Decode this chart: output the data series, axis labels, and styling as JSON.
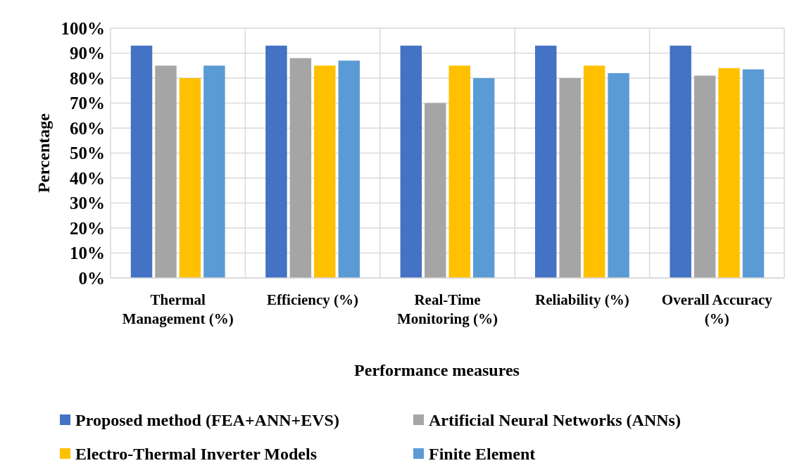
{
  "chart_data": {
    "type": "bar",
    "xlabel": "Performance measures",
    "ylabel": "Percentage",
    "categories": [
      "Thermal Management (%)",
      "Efficiency (%)",
      "Real-Time Monitoring (%)",
      "Reliability (%)",
      "Overall Accuracy (%)"
    ],
    "series": [
      {
        "name": "Proposed method (FEA+ANN+EVS)",
        "color": "#4472c4",
        "values": [
          93,
          93,
          93,
          93,
          93
        ]
      },
      {
        "name": "Artificial Neural Networks (ANNs)",
        "color": "#a5a5a5",
        "values": [
          85,
          88,
          70,
          80,
          81
        ]
      },
      {
        "name": "Electro-Thermal Inverter Models",
        "color": "#ffc000",
        "values": [
          80,
          85,
          85,
          85,
          84
        ]
      },
      {
        "name": "Finite Element",
        "color": "#5b9bd5",
        "values": [
          85,
          87,
          80,
          82,
          83.5
        ]
      }
    ],
    "ylim": [
      0,
      100
    ],
    "yticks": [
      {
        "value": 0,
        "label": "0%"
      },
      {
        "value": 10,
        "label": "10%"
      },
      {
        "value": 20,
        "label": "20%"
      },
      {
        "value": 30,
        "label": "30%"
      },
      {
        "value": 40,
        "label": "40%"
      },
      {
        "value": 50,
        "label": "50%"
      },
      {
        "value": 60,
        "label": "60%"
      },
      {
        "value": 70,
        "label": "70%"
      },
      {
        "value": 80,
        "label": "80%"
      },
      {
        "value": 90,
        "label": "90%"
      },
      {
        "value": 100,
        "label": "100%"
      }
    ],
    "grid": true,
    "legend": "bottom"
  }
}
